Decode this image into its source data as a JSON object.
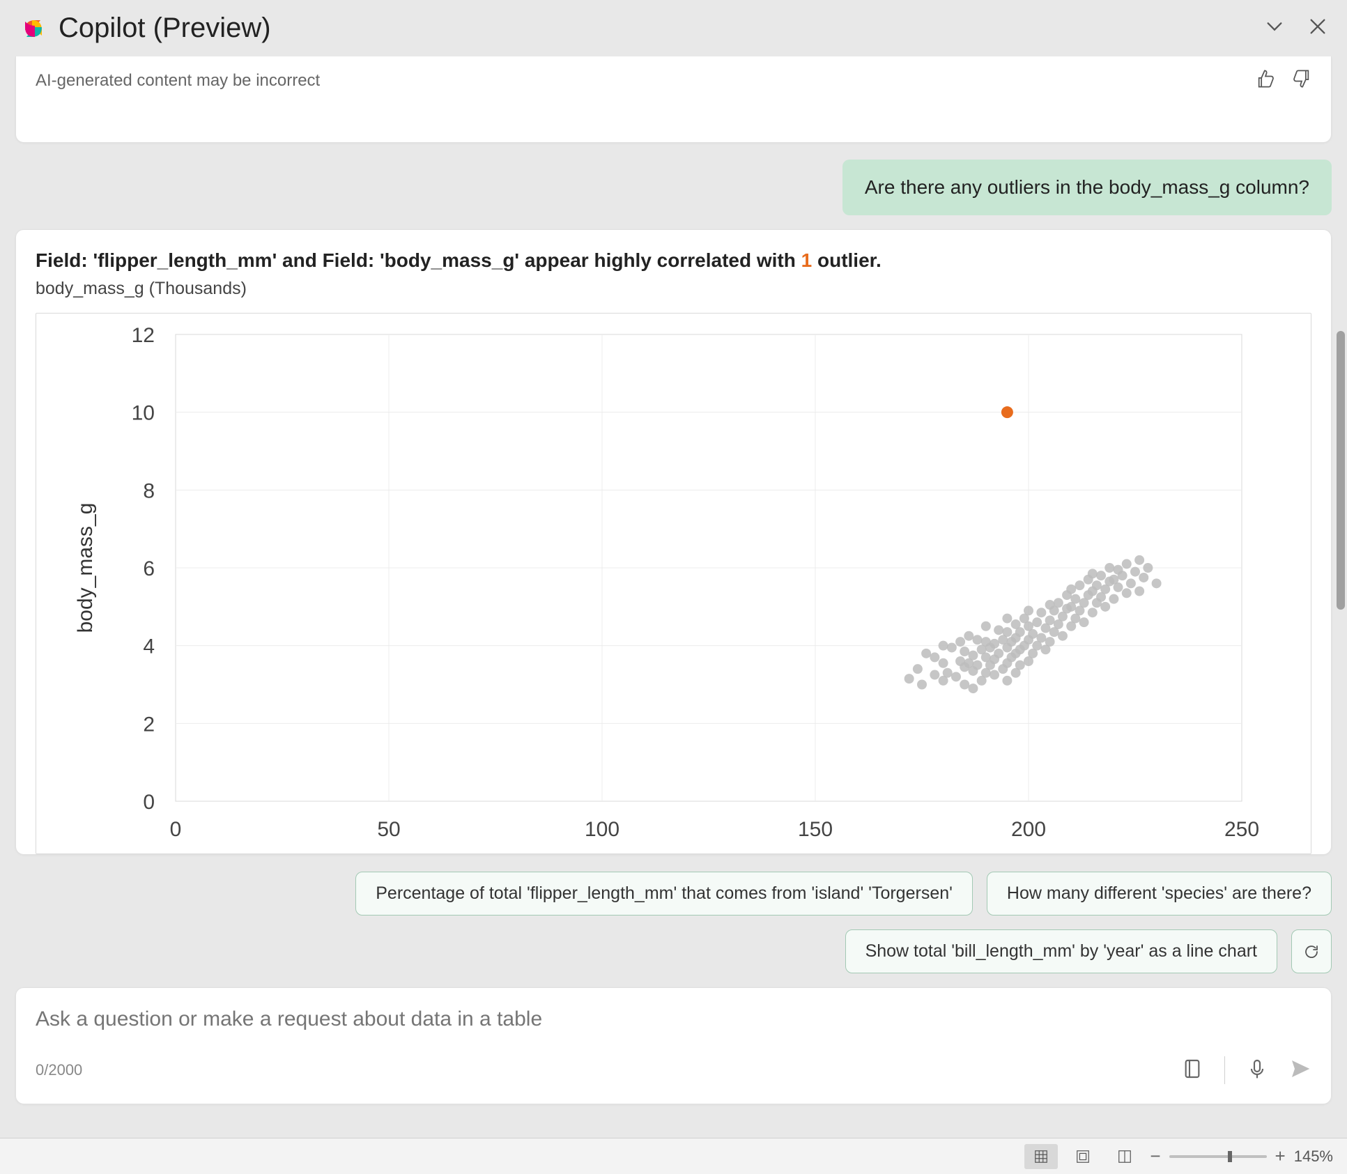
{
  "header": {
    "title": "Copilot (Preview)"
  },
  "disclaimer": {
    "text": "AI-generated content may be incorrect"
  },
  "user_message": {
    "text": "Are there any outliers in the body_mass_g column?"
  },
  "response": {
    "title_pre": "Field: 'flipper_length_mm' and Field: 'body_mass_g' appear highly correlated with ",
    "outlier_count": "1",
    "title_post": " outlier.",
    "subtitle": "body_mass_g (Thousands)"
  },
  "chart": {
    "type": "scatter",
    "x_axis_label": "",
    "y_axis_label": "body_mass_g",
    "xlim": [
      0,
      250
    ],
    "ylim": [
      0,
      12
    ],
    "x_ticks": [
      0,
      50,
      100,
      150,
      200,
      250
    ],
    "y_ticks": [
      0,
      2,
      4,
      6,
      8,
      10,
      12
    ],
    "grid_color": "#ececec",
    "border_color": "#d9d9d9",
    "point_color_main": "#bcbcbc",
    "point_color_outlier": "#e86c1d",
    "point_radius": 7,
    "outlier_radius": 8.5,
    "background_color": "#ffffff",
    "tick_fontsize": 30,
    "axis_fontsize": 30,
    "points": [
      [
        172,
        3.15
      ],
      [
        174,
        3.4
      ],
      [
        175,
        3.0
      ],
      [
        176,
        3.8
      ],
      [
        178,
        3.25
      ],
      [
        178,
        3.7
      ],
      [
        180,
        3.1
      ],
      [
        180,
        3.55
      ],
      [
        180,
        4.0
      ],
      [
        181,
        3.3
      ],
      [
        182,
        3.95
      ],
      [
        183,
        3.2
      ],
      [
        184,
        3.6
      ],
      [
        184,
        4.1
      ],
      [
        185,
        3.0
      ],
      [
        185,
        3.45
      ],
      [
        185,
        3.85
      ],
      [
        186,
        4.25
      ],
      [
        186,
        3.55
      ],
      [
        187,
        2.9
      ],
      [
        187,
        3.35
      ],
      [
        187,
        3.75
      ],
      [
        188,
        4.15
      ],
      [
        188,
        3.5
      ],
      [
        189,
        3.1
      ],
      [
        189,
        3.9
      ],
      [
        190,
        3.3
      ],
      [
        190,
        3.7
      ],
      [
        190,
        4.1
      ],
      [
        190,
        4.5
      ],
      [
        191,
        3.5
      ],
      [
        191,
        3.95
      ],
      [
        192,
        3.25
      ],
      [
        192,
        3.65
      ],
      [
        192,
        4.05
      ],
      [
        193,
        4.4
      ],
      [
        193,
        3.8
      ],
      [
        194,
        3.4
      ],
      [
        194,
        4.15
      ],
      [
        195,
        3.1
      ],
      [
        195,
        3.55
      ],
      [
        195,
        3.95
      ],
      [
        195,
        4.35
      ],
      [
        195,
        4.7
      ],
      [
        196,
        3.7
      ],
      [
        196,
        4.1
      ],
      [
        197,
        3.3
      ],
      [
        197,
        3.8
      ],
      [
        197,
        4.2
      ],
      [
        197,
        4.55
      ],
      [
        198,
        3.5
      ],
      [
        198,
        3.9
      ],
      [
        198,
        4.35
      ],
      [
        199,
        4.0
      ],
      [
        199,
        4.7
      ],
      [
        200,
        3.6
      ],
      [
        200,
        4.15
      ],
      [
        200,
        4.5
      ],
      [
        200,
        4.9
      ],
      [
        201,
        3.8
      ],
      [
        201,
        4.3
      ],
      [
        202,
        4.0
      ],
      [
        202,
        4.6
      ],
      [
        203,
        4.2
      ],
      [
        203,
        4.85
      ],
      [
        204,
        3.9
      ],
      [
        204,
        4.45
      ],
      [
        205,
        4.1
      ],
      [
        205,
        4.65
      ],
      [
        205,
        5.05
      ],
      [
        206,
        4.35
      ],
      [
        206,
        4.9
      ],
      [
        207,
        4.55
      ],
      [
        207,
        5.1
      ],
      [
        208,
        4.25
      ],
      [
        208,
        4.75
      ],
      [
        209,
        4.95
      ],
      [
        209,
        5.3
      ],
      [
        210,
        4.5
      ],
      [
        210,
        5.0
      ],
      [
        210,
        5.45
      ],
      [
        211,
        4.7
      ],
      [
        211,
        5.2
      ],
      [
        212,
        4.9
      ],
      [
        212,
        5.55
      ],
      [
        213,
        4.6
      ],
      [
        213,
        5.1
      ],
      [
        214,
        5.3
      ],
      [
        214,
        5.7
      ],
      [
        215,
        4.85
      ],
      [
        215,
        5.4
      ],
      [
        215,
        5.85
      ],
      [
        216,
        5.1
      ],
      [
        216,
        5.55
      ],
      [
        217,
        5.25
      ],
      [
        217,
        5.8
      ],
      [
        218,
        5.0
      ],
      [
        218,
        5.45
      ],
      [
        219,
        5.65
      ],
      [
        219,
        6.0
      ],
      [
        220,
        5.2
      ],
      [
        220,
        5.7
      ],
      [
        221,
        5.5
      ],
      [
        221,
        5.95
      ],
      [
        222,
        5.8
      ],
      [
        223,
        5.35
      ],
      [
        223,
        6.1
      ],
      [
        224,
        5.6
      ],
      [
        225,
        5.9
      ],
      [
        226,
        5.4
      ],
      [
        226,
        6.2
      ],
      [
        227,
        5.75
      ],
      [
        228,
        6.0
      ],
      [
        230,
        5.6
      ]
    ],
    "outliers": [
      [
        195,
        10.0
      ]
    ]
  },
  "suggestions": {
    "chip1": "Percentage of total 'flipper_length_mm' that comes from 'island' 'Torgersen'",
    "chip2": "How many different 'species' are there?",
    "chip3": "Show total 'bill_length_mm' by 'year' as a line chart"
  },
  "ask_box": {
    "placeholder": "Ask a question or make a request about data in a table",
    "char_count": "0/2000"
  },
  "status_bar": {
    "zoom_label": "145%",
    "zoom_thumb_percent": 60
  }
}
